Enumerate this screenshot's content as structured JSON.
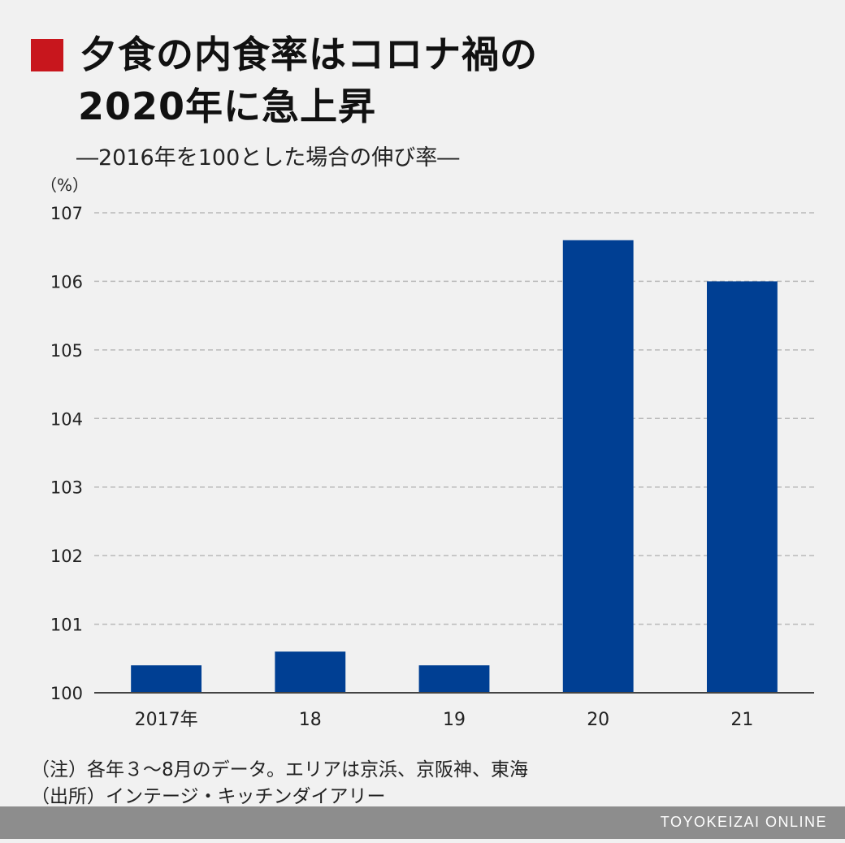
{
  "title": {
    "line1": "夕食の内食率はコロナ禍の",
    "line2": "2020年に急上昇"
  },
  "subtitle": "―2016年を100とした場合の伸び率―",
  "notes": {
    "note1": "（注）各年３〜8月のデータ。エリアは京浜、京阪神、東海",
    "note2": "（出所）インテージ・キッチンダイアリー"
  },
  "footer": {
    "brand": "TOYOKEIZAI ONLINE"
  },
  "colors": {
    "bar": "#003f93",
    "title_marker": "#c8161d",
    "footer_bar": "#8d8d8d"
  },
  "chart_data": {
    "type": "bar",
    "title": "夕食の内食率はコロナ禍の2020年に急上昇",
    "subtitle": "―2016年を100とした場合の伸び率―",
    "unit_label": "（%）",
    "categories": [
      "2017年",
      "18",
      "19",
      "20",
      "21"
    ],
    "values": [
      100.4,
      100.6,
      100.4,
      106.6,
      106.0
    ],
    "ylim": [
      100,
      107
    ],
    "yticks": [
      100,
      101,
      102,
      103,
      104,
      105,
      106,
      107
    ],
    "grid": true,
    "legend": "none"
  }
}
